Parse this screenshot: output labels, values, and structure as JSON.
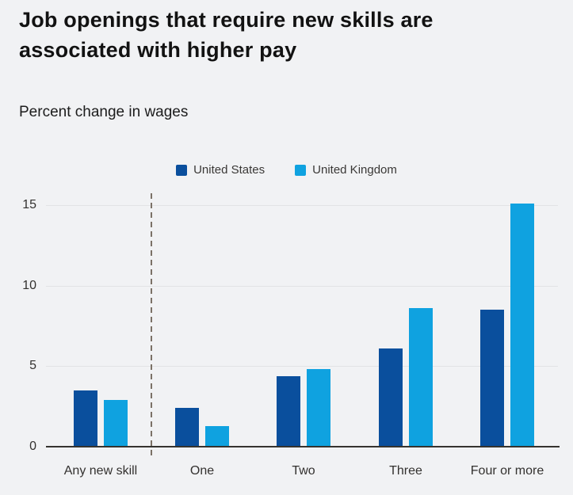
{
  "header": {
    "title": "Job openings that require new skills are associated with higher pay",
    "subtitle": "Percent change in wages"
  },
  "legend": [
    {
      "label": "United States",
      "color": "#0a4f9d"
    },
    {
      "label": "United Kingdom",
      "color": "#0fa2e0"
    }
  ],
  "chart_data": {
    "type": "bar",
    "title": "Job openings that require new skills are associated with higher pay",
    "subtitle": "Percent change in wages",
    "categories": [
      "Any new skill",
      "One",
      "Two",
      "Three",
      "Four or more"
    ],
    "series": [
      {
        "name": "United States",
        "color": "#0a4f9d",
        "values": [
          3.5,
          2.4,
          4.4,
          6.1,
          8.5
        ]
      },
      {
        "name": "United Kingdom",
        "color": "#0fa2e0",
        "values": [
          2.9,
          1.3,
          4.8,
          8.6,
          15.1
        ]
      }
    ],
    "xlabel": "",
    "ylabel": "Percent change in wages",
    "yticks": [
      0,
      5,
      10,
      15
    ],
    "ylim": [
      0,
      16
    ],
    "grid": true,
    "legend_position": "top-center",
    "separator_after_category": "Any new skill"
  },
  "colors": {
    "background": "#f1f2f4",
    "gridline": "#e2e3e5",
    "axis": "#35332f",
    "separator": "#7b7166",
    "text": "#33312f"
  }
}
